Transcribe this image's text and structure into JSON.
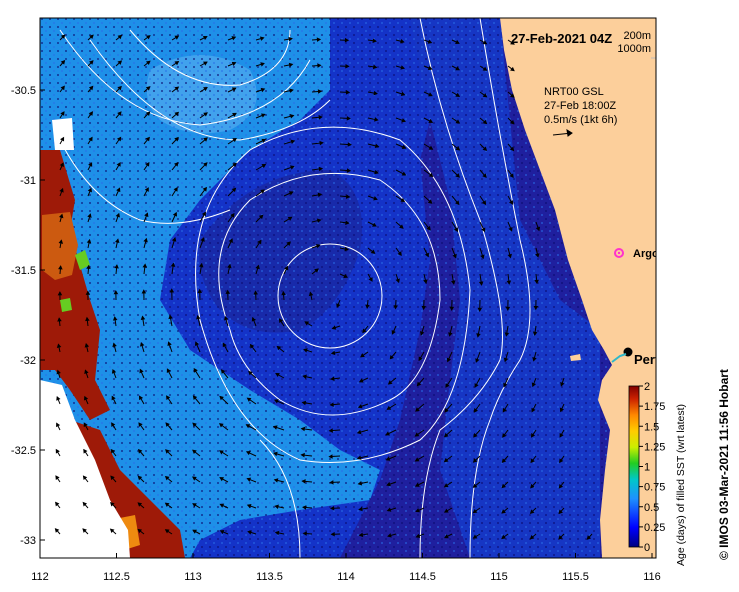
{
  "map": {
    "title": "27-Feb-2021 04Z",
    "depth_legend": [
      "200m",
      "1000m"
    ],
    "current_note_lines": [
      "NRT00 GSL",
      "27-Feb 18:00Z",
      "0.5m/s (1kt 6h)"
    ],
    "argo_label": "Argo",
    "city_label": "Perth",
    "credit": "© IMOS 03-Mar-2021 11:56 Hobart",
    "x_ticks": [
      "112",
      "112.5",
      "113",
      "113.5",
      "114",
      "114.5",
      "115",
      "115.5",
      "116"
    ],
    "y_ticks": [
      "-30.5",
      "-31",
      "-31.5",
      "-32",
      "-32.5",
      "-33"
    ],
    "colorbar": {
      "label": "Age (days) of filled SST (wrt latest)",
      "ticks": [
        "0",
        "0.25",
        "0.5",
        "0.75",
        "1",
        "1.25",
        "1.5",
        "1.75",
        "2"
      ]
    },
    "colors": {
      "ocean_fresh": "#1f1f9e",
      "ocean_mid": "#1433c8",
      "ocean_older": "#1e90e8",
      "land": "#fccf9b",
      "contour": "#ffffff",
      "argo": "#ff33cc",
      "old_data": "#9e1a08"
    },
    "icons": [
      "argo-float-marker",
      "city-marker-icon",
      "current-arrow-icon"
    ]
  }
}
